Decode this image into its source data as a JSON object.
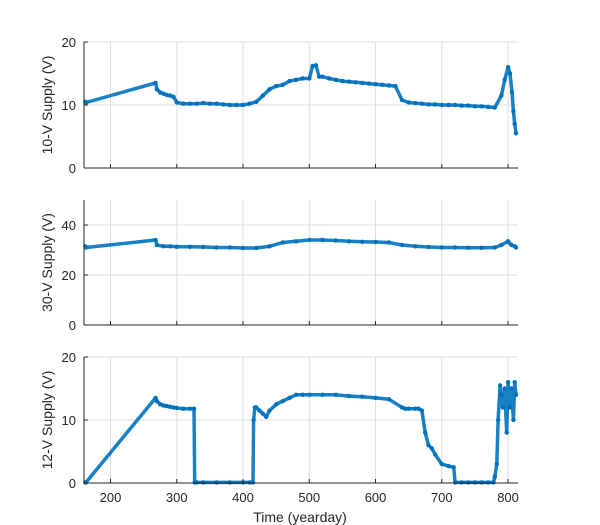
{
  "chart_data": [
    {
      "type": "scatter",
      "title": "",
      "xlabel": "",
      "ylabel": "10-V Supply (V)",
      "xlim": [
        160,
        815
      ],
      "ylim": [
        0,
        20
      ],
      "yticks": [
        0,
        10,
        20
      ],
      "xticks": [
        200,
        300,
        400,
        500,
        600,
        700,
        800
      ],
      "show_xtick_labels": false,
      "grid": true,
      "color": "#0072bd",
      "series": [
        {
          "x": [
            162,
            163,
            268,
            270,
            275,
            280,
            285,
            290,
            295,
            300,
            310,
            320,
            330,
            340,
            350,
            360,
            370,
            380,
            390,
            400,
            410,
            420,
            430,
            440,
            450,
            460,
            470,
            480,
            490,
            500,
            505,
            510,
            515,
            520,
            530,
            540,
            550,
            560,
            570,
            580,
            590,
            600,
            610,
            620,
            630,
            640,
            650,
            660,
            670,
            680,
            690,
            700,
            710,
            720,
            730,
            740,
            750,
            760,
            770,
            780,
            790,
            795,
            800,
            803,
            806,
            808,
            810,
            812
          ],
          "y": [
            10.5,
            10.4,
            13.5,
            12.5,
            12.0,
            11.8,
            11.6,
            11.5,
            11.3,
            10.4,
            10.2,
            10.2,
            10.2,
            10.3,
            10.2,
            10.2,
            10.1,
            10.0,
            10.0,
            10.0,
            10.2,
            10.5,
            11.5,
            12.5,
            13.0,
            13.2,
            13.8,
            14.0,
            14.2,
            14.2,
            16.2,
            16.3,
            14.5,
            14.5,
            14.2,
            14.0,
            13.8,
            13.7,
            13.6,
            13.5,
            13.4,
            13.3,
            13.2,
            13.1,
            13.0,
            10.8,
            10.4,
            10.3,
            10.2,
            10.1,
            10.1,
            10.0,
            10.0,
            10.0,
            9.9,
            9.9,
            9.8,
            9.8,
            9.7,
            9.6,
            11.5,
            14.0,
            16.0,
            15.0,
            12.0,
            9.0,
            7.0,
            5.5
          ]
        }
      ]
    },
    {
      "type": "scatter",
      "title": "",
      "xlabel": "",
      "ylabel": "30-V Supply (V)",
      "xlim": [
        160,
        815
      ],
      "ylim": [
        0,
        50
      ],
      "yticks": [
        0,
        20,
        40
      ],
      "xticks": [
        200,
        300,
        400,
        500,
        600,
        700,
        800
      ],
      "show_xtick_labels": false,
      "grid": true,
      "color": "#0072bd",
      "series": [
        {
          "x": [
            162,
            163,
            268,
            270,
            280,
            290,
            300,
            320,
            340,
            360,
            380,
            400,
            420,
            440,
            460,
            480,
            500,
            520,
            540,
            560,
            580,
            600,
            620,
            640,
            660,
            680,
            700,
            720,
            740,
            760,
            780,
            790,
            800,
            805,
            810,
            812
          ],
          "y": [
            31.5,
            31.0,
            34.0,
            32.0,
            31.5,
            31.5,
            31.3,
            31.3,
            31.2,
            31.0,
            31.0,
            30.8,
            30.8,
            31.5,
            33.0,
            33.5,
            34.0,
            34.0,
            33.8,
            33.5,
            33.3,
            33.2,
            33.0,
            32.0,
            31.5,
            31.2,
            31.0,
            31.0,
            30.9,
            30.9,
            31.0,
            32.0,
            33.5,
            32.0,
            31.5,
            31.0
          ]
        }
      ]
    },
    {
      "type": "scatter",
      "title": "",
      "xlabel": "Time (yearday)",
      "ylabel": "12-V Supply (V)",
      "xlim": [
        160,
        815
      ],
      "ylim": [
        0,
        20
      ],
      "yticks": [
        0,
        10,
        20
      ],
      "xticks": [
        200,
        300,
        400,
        500,
        600,
        700,
        800
      ],
      "show_xtick_labels": true,
      "grid": true,
      "color": "#0072bd",
      "series": [
        {
          "x": [
            162,
            163,
            268,
            270,
            275,
            280,
            285,
            290,
            295,
            300,
            310,
            320,
            326,
            327,
            330,
            340,
            360,
            380,
            400,
            410,
            415,
            416,
            418,
            420,
            425,
            430,
            435,
            440,
            450,
            460,
            470,
            480,
            490,
            500,
            520,
            540,
            560,
            580,
            600,
            620,
            640,
            645,
            650,
            660,
            665,
            670,
            675,
            680,
            685,
            690,
            700,
            710,
            718,
            720,
            730,
            740,
            750,
            760,
            770,
            778,
            780,
            783,
            785,
            788,
            790,
            792,
            795,
            798,
            800,
            803,
            805,
            808,
            810,
            812
          ],
          "y": [
            0.1,
            0.1,
            13.5,
            13.0,
            12.5,
            12.3,
            12.2,
            12.1,
            12.0,
            11.9,
            11.8,
            11.8,
            11.8,
            0.1,
            0.1,
            0.1,
            0.1,
            0.1,
            0.1,
            0.1,
            0.1,
            10.0,
            12.0,
            12.0,
            11.5,
            11.0,
            10.5,
            11.5,
            12.5,
            13.0,
            13.5,
            14.0,
            14.0,
            14.0,
            14.0,
            14.0,
            13.8,
            13.7,
            13.5,
            13.3,
            12.0,
            11.8,
            11.8,
            11.8,
            11.8,
            11.5,
            8.0,
            6.0,
            5.5,
            4.5,
            3.0,
            2.7,
            2.5,
            0.1,
            0.1,
            0.1,
            0.1,
            0.1,
            0.1,
            0.1,
            1.0,
            3.0,
            10.0,
            15.5,
            14.0,
            12.0,
            15.0,
            8.0,
            16.0,
            12.0,
            15.0,
            10.0,
            16.0,
            14.0
          ]
        }
      ]
    }
  ]
}
